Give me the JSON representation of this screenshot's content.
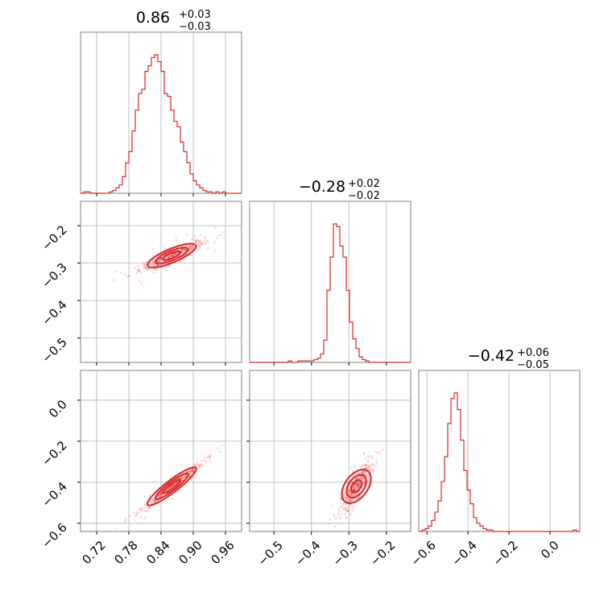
{
  "chart_data": {
    "type": "corner",
    "color": "#d62728",
    "parameters": [
      {
        "median": 0.86,
        "plus": 0.03,
        "minus": 0.03
      },
      {
        "median": -0.28,
        "plus": 0.02,
        "minus": 0.02
      },
      {
        "median": -0.42,
        "plus": 0.06,
        "minus": 0.05
      }
    ],
    "titles": [
      {
        "main": "0.86",
        "sup": "+0.03",
        "sub": "−0.03"
      },
      {
        "main": "−0.28",
        "sup": "+0.02",
        "sub": "−0.02"
      },
      {
        "main": "−0.42",
        "sup": "+0.06",
        "sub": "−0.05"
      }
    ],
    "ranges": [
      [
        0.69,
        0.99
      ],
      [
        -0.565,
        -0.135
      ],
      [
        -0.64,
        0.145
      ]
    ],
    "ticks": {
      "p0": [
        0.72,
        0.78,
        0.84,
        0.9,
        0.96
      ],
      "p1": [
        -0.5,
        -0.4,
        -0.3,
        -0.2
      ],
      "p2": [
        -0.6,
        -0.4,
        -0.2,
        0.0
      ]
    },
    "tick_labels": {
      "p0": [
        "0.72",
        "0.78",
        "0.84",
        "0.90",
        "0.96"
      ],
      "p1": [
        "−0.5",
        "−0.4",
        "−0.3",
        "−0.2"
      ],
      "p2": [
        "−0.6",
        "−0.4",
        "−0.2",
        "0.0"
      ]
    },
    "row_tick_labels": {
      "p1": [
        "−0.2",
        "−0.3",
        "−0.4",
        "−0.5"
      ],
      "p2": [
        "0.0",
        "−0.2",
        "−0.4",
        "−0.6"
      ]
    },
    "histograms": {
      "p0": {
        "edges_start": 0.69,
        "bin_width": 0.006,
        "max": 1.0,
        "heights": [
          0.0,
          0.01,
          0.01,
          0.0,
          0.0,
          0.0,
          0.0,
          0.0,
          0.0,
          0.01,
          0.02,
          0.04,
          0.06,
          0.12,
          0.22,
          0.3,
          0.45,
          0.6,
          0.72,
          0.75,
          0.88,
          0.92,
          0.98,
          1.0,
          0.95,
          0.88,
          0.72,
          0.7,
          0.6,
          0.52,
          0.48,
          0.37,
          0.3,
          0.22,
          0.14,
          0.09,
          0.06,
          0.04,
          0.02,
          0.01,
          0.01,
          0.0,
          0.01,
          0.0,
          0.01,
          0.0,
          0.0,
          0.0,
          0.0,
          0.0
        ]
      },
      "p1": {
        "edges_start": -0.565,
        "bin_width": 0.0086,
        "max": 1.0,
        "heights": [
          0.0,
          0.0,
          0.0,
          0.0,
          0.0,
          0.0,
          0.0,
          0.0,
          0.0,
          0.0,
          0.0,
          0.0,
          0.01,
          0.0,
          0.0,
          0.01,
          0.01,
          0.01,
          0.01,
          0.01,
          0.02,
          0.03,
          0.06,
          0.16,
          0.52,
          0.76,
          1.0,
          0.98,
          0.84,
          0.76,
          0.52,
          0.29,
          0.17,
          0.1,
          0.04,
          0.02,
          0.01,
          0.0,
          0.0,
          0.0,
          0.0,
          0.0,
          0.0,
          0.0,
          0.0,
          0.0,
          0.0,
          0.0,
          0.0,
          0.0
        ]
      },
      "p2": {
        "edges_start": -0.64,
        "bin_width": 0.0157,
        "max": 1.0,
        "heights": [
          0.0,
          0.01,
          0.02,
          0.04,
          0.08,
          0.14,
          0.22,
          0.36,
          0.54,
          0.78,
          0.96,
          1.0,
          0.88,
          0.66,
          0.44,
          0.3,
          0.2,
          0.1,
          0.06,
          0.04,
          0.02,
          0.01,
          0.01,
          0.0,
          0.0,
          0.0,
          0.0,
          0.0,
          0.0,
          0.0,
          0.0,
          0.0,
          0.0,
          0.0,
          0.0,
          0.0,
          0.0,
          0.0,
          0.0,
          0.0,
          0.0,
          0.0,
          0.0,
          0.0,
          0.0,
          0.0,
          0.0,
          0.0,
          0.01,
          0.0
        ]
      }
    },
    "covariance": {
      "p1_vs_p0": {
        "mean": [
          0.86,
          -0.28
        ],
        "slope": 0.6,
        "spread_x": 0.03,
        "spread_y_perp": 0.008
      },
      "p2_vs_p0": {
        "mean": [
          0.86,
          -0.42
        ],
        "slope": 2.0,
        "spread_x": 0.03,
        "spread_y_perp": 0.012
      },
      "p2_vs_p1": {
        "mean": [
          -0.28,
          -0.42
        ],
        "slope": 2.5,
        "spread_x": 0.02,
        "spread_y_perp": 0.03
      }
    },
    "grid": true
  }
}
